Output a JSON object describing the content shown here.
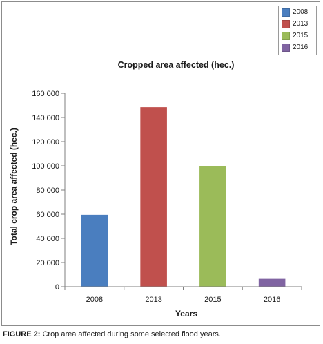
{
  "chart_data": {
    "type": "bar",
    "title": "Cropped area affected (hec.)",
    "xlabel": "Years",
    "ylabel": "Total crop area affected (hec.)",
    "categories": [
      "2008",
      "2013",
      "2015",
      "2016"
    ],
    "values": [
      59500,
      148500,
      99500,
      6500
    ],
    "colors": [
      "#4a7ebf",
      "#c0504d",
      "#9bbb59",
      "#8064a2"
    ],
    "ylim": [
      0,
      160000
    ],
    "yticks": [
      0,
      20000,
      40000,
      60000,
      80000,
      100000,
      120000,
      140000,
      160000
    ],
    "ytick_labels": [
      "0",
      "20 000",
      "40 000",
      "60 000",
      "80 000",
      "100 000",
      "120 000",
      "140 000",
      "160 000"
    ],
    "legend": {
      "position": "top-right",
      "entries": [
        "2008",
        "2013",
        "2015",
        "2016"
      ]
    },
    "grid": false
  },
  "caption": {
    "label": "FIGURE 2:",
    "text": " Crop area affected during some selected flood years."
  }
}
